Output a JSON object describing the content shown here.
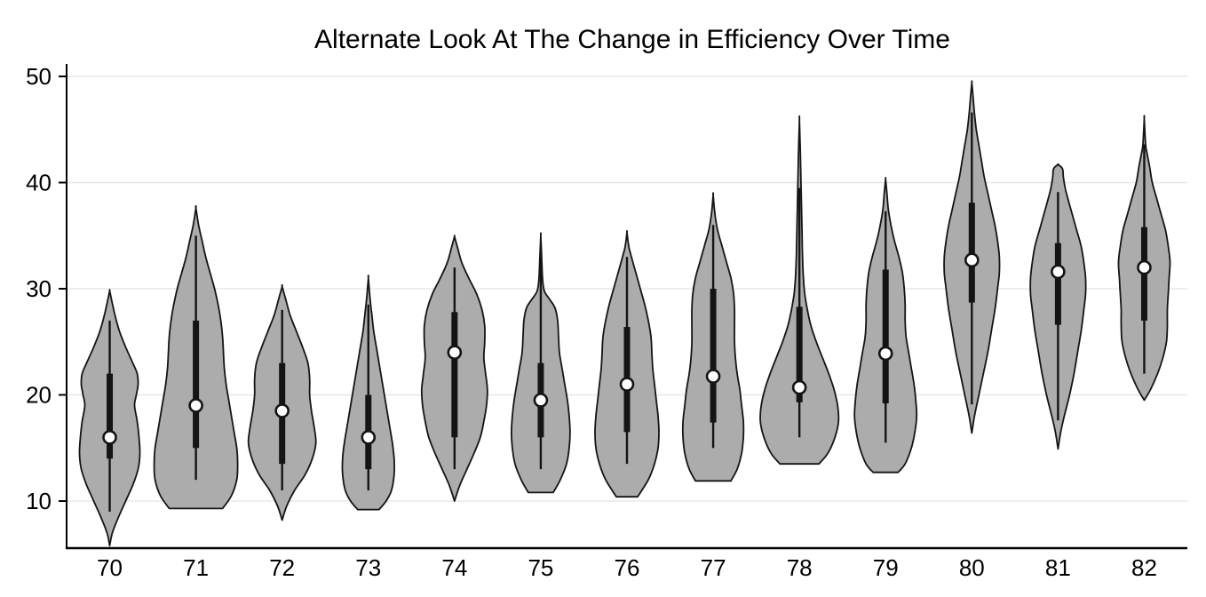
{
  "chart_data": {
    "type": "violin",
    "title": "Alternate Look At The Change in Efficiency Over Time",
    "xlabel": "",
    "ylabel": "",
    "x_categories": [
      "70",
      "71",
      "72",
      "73",
      "74",
      "75",
      "76",
      "77",
      "78",
      "79",
      "80",
      "81",
      "82"
    ],
    "y_ticks": [
      10,
      20,
      30,
      40,
      50
    ],
    "ylim": [
      5,
      51
    ],
    "grid": true,
    "legend_position": "none",
    "colors": {
      "background": "#FFFFFF",
      "violin_fill": "#ACACAC",
      "violin_stroke": "#141414",
      "box": "#141414",
      "whisker": "#141414",
      "median_fill": "#FFFFFF",
      "median_stroke": "#141414",
      "gridline": "#E8E8E8",
      "axis": "#000000",
      "text": "#000000"
    },
    "series": [
      {
        "category": "70",
        "median": 16,
        "q1": 14,
        "q3": 22,
        "whisker_low": 9,
        "whisker_high": 27,
        "kde_low": 5.8,
        "kde_high": 29.8,
        "profile": [
          [
            5.8,
            0
          ],
          [
            7,
            3
          ],
          [
            8.5,
            10
          ],
          [
            10,
            18
          ],
          [
            11.5,
            26
          ],
          [
            13,
            32
          ],
          [
            14.5,
            34
          ],
          [
            16,
            33
          ],
          [
            17.5,
            31
          ],
          [
            19,
            28
          ],
          [
            20,
            30
          ],
          [
            21,
            32
          ],
          [
            22,
            31
          ],
          [
            23,
            26
          ],
          [
            24.5,
            18
          ],
          [
            26,
            11
          ],
          [
            27.5,
            6
          ],
          [
            29,
            2
          ],
          [
            29.8,
            0
          ]
        ]
      },
      {
        "category": "71",
        "median": 19,
        "q1": 15,
        "q3": 27,
        "whisker_low": 12,
        "whisker_high": 35,
        "kde_low": 9.3,
        "kde_high": 37.6,
        "profile": [
          [
            9.3,
            30
          ],
          [
            10.5,
            40
          ],
          [
            12,
            46
          ],
          [
            13.5,
            47
          ],
          [
            15,
            46
          ],
          [
            16.5,
            43
          ],
          [
            18,
            40
          ],
          [
            19.5,
            37
          ],
          [
            21,
            34
          ],
          [
            22.5,
            32
          ],
          [
            24,
            31
          ],
          [
            25.5,
            30
          ],
          [
            27,
            28
          ],
          [
            28.5,
            25
          ],
          [
            30,
            21
          ],
          [
            31.5,
            16
          ],
          [
            33,
            11
          ],
          [
            34.5,
            7
          ],
          [
            36,
            3
          ],
          [
            37.6,
            0
          ]
        ]
      },
      {
        "category": "72",
        "median": 18.5,
        "q1": 13.5,
        "q3": 23,
        "whisker_low": 11,
        "whisker_high": 28,
        "kde_low": 8.2,
        "kde_high": 30.2,
        "profile": [
          [
            8.2,
            0
          ],
          [
            9.5,
            5
          ],
          [
            11,
            14
          ],
          [
            12.5,
            26
          ],
          [
            14,
            34
          ],
          [
            15.5,
            38
          ],
          [
            17,
            36
          ],
          [
            18.5,
            33
          ],
          [
            20,
            31
          ],
          [
            21.5,
            31
          ],
          [
            23,
            29
          ],
          [
            24.5,
            23
          ],
          [
            26,
            16
          ],
          [
            27.5,
            9
          ],
          [
            29,
            4
          ],
          [
            30.2,
            0
          ]
        ]
      },
      {
        "category": "73",
        "median": 16,
        "q1": 13,
        "q3": 20,
        "whisker_low": 11,
        "whisker_high": 28.5,
        "kde_low": 9.2,
        "kde_high": 31,
        "profile": [
          [
            9.2,
            12
          ],
          [
            10,
            20
          ],
          [
            11,
            26
          ],
          [
            12.5,
            29
          ],
          [
            14,
            29
          ],
          [
            15.5,
            27
          ],
          [
            17,
            24
          ],
          [
            18.5,
            21
          ],
          [
            20,
            18
          ],
          [
            21.5,
            15
          ],
          [
            23,
            12
          ],
          [
            24.5,
            9
          ],
          [
            26,
            6
          ],
          [
            27.5,
            4
          ],
          [
            29,
            2
          ],
          [
            31,
            0
          ]
        ]
      },
      {
        "category": "74",
        "median": 24,
        "q1": 16,
        "q3": 27.8,
        "whisker_low": 13,
        "whisker_high": 32,
        "kde_low": 10,
        "kde_high": 34.9,
        "profile": [
          [
            10,
            0
          ],
          [
            11.5,
            6
          ],
          [
            13,
            14
          ],
          [
            14.5,
            22
          ],
          [
            16,
            29
          ],
          [
            17.5,
            33
          ],
          [
            19,
            36
          ],
          [
            20.5,
            37
          ],
          [
            22,
            35
          ],
          [
            23.5,
            33
          ],
          [
            25,
            34
          ],
          [
            26.5,
            34
          ],
          [
            28,
            31
          ],
          [
            29.5,
            25
          ],
          [
            31,
            16
          ],
          [
            32.5,
            8
          ],
          [
            34,
            3
          ],
          [
            34.9,
            0
          ]
        ]
      },
      {
        "category": "75",
        "median": 19.5,
        "q1": 16,
        "q3": 23,
        "whisker_low": 13,
        "whisker_high": 33,
        "kde_low": 10.8,
        "kde_high": 35,
        "profile": [
          [
            10.8,
            14
          ],
          [
            12,
            22
          ],
          [
            13.5,
            29
          ],
          [
            15,
            32
          ],
          [
            16.5,
            33
          ],
          [
            18,
            32
          ],
          [
            19.5,
            30
          ],
          [
            21,
            27
          ],
          [
            22.5,
            24
          ],
          [
            24,
            21
          ],
          [
            25.5,
            20
          ],
          [
            27,
            19
          ],
          [
            28.2,
            16
          ],
          [
            29,
            10
          ],
          [
            29.8,
            4
          ],
          [
            31,
            2
          ],
          [
            33,
            1
          ],
          [
            35,
            0
          ]
        ]
      },
      {
        "category": "76",
        "median": 21,
        "q1": 16.5,
        "q3": 26.4,
        "whisker_low": 13.5,
        "whisker_high": 33,
        "kde_low": 10.4,
        "kde_high": 35.3,
        "profile": [
          [
            10.4,
            12
          ],
          [
            12,
            24
          ],
          [
            13.5,
            31
          ],
          [
            15,
            35
          ],
          [
            16.5,
            36
          ],
          [
            18,
            35
          ],
          [
            19.5,
            33
          ],
          [
            21,
            31
          ],
          [
            22.5,
            29
          ],
          [
            24,
            28
          ],
          [
            25.5,
            27
          ],
          [
            27,
            24
          ],
          [
            28.5,
            20
          ],
          [
            30,
            15
          ],
          [
            31.5,
            10
          ],
          [
            33,
            5
          ],
          [
            34,
            2
          ],
          [
            35.3,
            0
          ]
        ]
      },
      {
        "category": "77",
        "median": 21.75,
        "q1": 17.4,
        "q3": 30,
        "whisker_low": 15,
        "whisker_high": 36,
        "kde_low": 11.9,
        "kde_high": 38.8,
        "profile": [
          [
            11.9,
            20
          ],
          [
            13,
            27
          ],
          [
            14.5,
            32
          ],
          [
            16,
            34
          ],
          [
            17.5,
            34
          ],
          [
            19,
            32
          ],
          [
            20.5,
            30
          ],
          [
            22,
            27
          ],
          [
            23.5,
            25
          ],
          [
            25,
            24
          ],
          [
            26.5,
            24
          ],
          [
            28,
            24
          ],
          [
            29.5,
            23
          ],
          [
            31,
            20
          ],
          [
            32.5,
            15
          ],
          [
            34,
            10
          ],
          [
            35.5,
            5
          ],
          [
            37,
            2
          ],
          [
            38.8,
            0
          ]
        ]
      },
      {
        "category": "78",
        "median": 20.7,
        "q1": 19.3,
        "q3": 28.3,
        "whisker_low": 16,
        "whisker_high": 39.5,
        "kde_low": 13.5,
        "kde_high": 45.9,
        "profile": [
          [
            13.5,
            22
          ],
          [
            14.5,
            32
          ],
          [
            16,
            40
          ],
          [
            17.5,
            44
          ],
          [
            19,
            43
          ],
          [
            20.5,
            39
          ],
          [
            22,
            33
          ],
          [
            23.5,
            26
          ],
          [
            25,
            19
          ],
          [
            26.5,
            13
          ],
          [
            28,
            9
          ],
          [
            29.5,
            6
          ],
          [
            31,
            4.5
          ],
          [
            33,
            3.5
          ],
          [
            35,
            3
          ],
          [
            37,
            2.5
          ],
          [
            39,
            2
          ],
          [
            41,
            1.5
          ],
          [
            43,
            1
          ],
          [
            45.9,
            0
          ]
        ]
      },
      {
        "category": "79",
        "median": 23.9,
        "q1": 19.2,
        "q3": 31.8,
        "whisker_low": 15.5,
        "whisker_high": 37.3,
        "kde_low": 12.7,
        "kde_high": 40.3,
        "profile": [
          [
            12.7,
            14
          ],
          [
            13.5,
            22
          ],
          [
            15,
            29
          ],
          [
            16.5,
            33
          ],
          [
            18,
            35
          ],
          [
            19.5,
            34
          ],
          [
            21,
            32
          ],
          [
            22.5,
            29
          ],
          [
            24,
            26
          ],
          [
            25.5,
            23
          ],
          [
            27,
            22
          ],
          [
            28.5,
            22
          ],
          [
            30,
            21
          ],
          [
            31.5,
            19
          ],
          [
            33,
            15
          ],
          [
            34.5,
            10
          ],
          [
            36,
            6
          ],
          [
            37.5,
            3
          ],
          [
            39,
            1.5
          ],
          [
            40.3,
            0
          ]
        ]
      },
      {
        "category": "80",
        "median": 32.7,
        "q1": 28.7,
        "q3": 38.1,
        "whisker_low": 19.1,
        "whisker_high": 46.6,
        "kde_low": 16.4,
        "kde_high": 49.4,
        "profile": [
          [
            16.4,
            0
          ],
          [
            18,
            3
          ],
          [
            20,
            8
          ],
          [
            22,
            13
          ],
          [
            24,
            18
          ],
          [
            26,
            22
          ],
          [
            28,
            26
          ],
          [
            30,
            29
          ],
          [
            31.5,
            31
          ],
          [
            33,
            31
          ],
          [
            34.5,
            29
          ],
          [
            36,
            26
          ],
          [
            37.5,
            22
          ],
          [
            39,
            18
          ],
          [
            40.5,
            14
          ],
          [
            42,
            11
          ],
          [
            43.5,
            8
          ],
          [
            45,
            5
          ],
          [
            46.5,
            3
          ],
          [
            48,
            1.5
          ],
          [
            49.4,
            0
          ]
        ]
      },
      {
        "category": "81",
        "median": 31.6,
        "q1": 26.6,
        "q3": 34.3,
        "whisker_low": 17.6,
        "whisker_high": 39.1,
        "kde_low": 14.9,
        "kde_high": 41.7,
        "profile": [
          [
            14.9,
            0
          ],
          [
            16.5,
            3
          ],
          [
            18,
            7
          ],
          [
            20,
            13
          ],
          [
            22,
            18
          ],
          [
            24,
            22
          ],
          [
            26,
            26
          ],
          [
            28,
            29
          ],
          [
            29.5,
            31
          ],
          [
            31,
            31
          ],
          [
            32.5,
            29
          ],
          [
            34,
            26
          ],
          [
            35.5,
            21
          ],
          [
            37,
            16
          ],
          [
            38.5,
            11
          ],
          [
            39.5,
            8
          ],
          [
            40.5,
            6
          ],
          [
            41.3,
            5
          ],
          [
            41.7,
            0
          ]
        ]
      },
      {
        "category": "82",
        "median": 32,
        "q1": 27,
        "q3": 35.8,
        "whisker_low": 22,
        "whisker_high": 43.6,
        "kde_low": 19.5,
        "kde_high": 46,
        "profile": [
          [
            19.5,
            0
          ],
          [
            20.5,
            7
          ],
          [
            22,
            15
          ],
          [
            23.5,
            21
          ],
          [
            25,
            25
          ],
          [
            26.5,
            26
          ],
          [
            28,
            26
          ],
          [
            29.5,
            27
          ],
          [
            31,
            28
          ],
          [
            32.5,
            29
          ],
          [
            34,
            27
          ],
          [
            35.5,
            24
          ],
          [
            37,
            19
          ],
          [
            38.5,
            14
          ],
          [
            40,
            9
          ],
          [
            41.5,
            6
          ],
          [
            42.8,
            3
          ],
          [
            43.6,
            1.5
          ],
          [
            46,
            0
          ]
        ]
      }
    ]
  }
}
